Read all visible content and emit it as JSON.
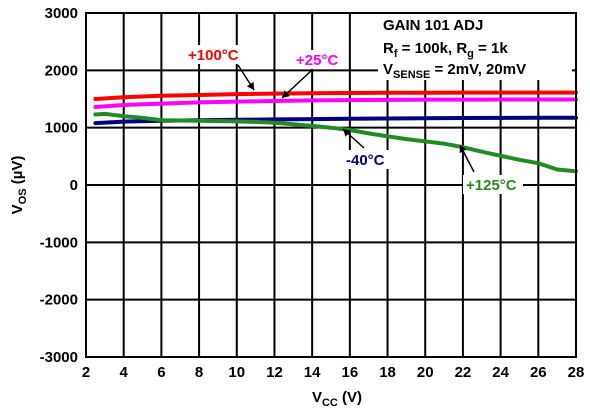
{
  "chart_data": {
    "type": "line",
    "xlabel": "VCC (V)",
    "xlabel_main": "V",
    "xlabel_sub": "CC",
    "xlabel_tail": " (V)",
    "ylabel": "VOS (µV)",
    "ylabel_main": "V",
    "ylabel_sub": "OS",
    "ylabel_tail": " (µV)",
    "xlim": [
      2,
      28
    ],
    "ylim": [
      -3000,
      3000
    ],
    "xticks": [
      2,
      4,
      6,
      8,
      10,
      12,
      14,
      16,
      18,
      20,
      22,
      24,
      26,
      28
    ],
    "yticks": [
      -3000,
      -2000,
      -1000,
      0,
      1000,
      2000,
      3000
    ],
    "grid": true,
    "conditions": {
      "line1": "GAIN 101 ADJ",
      "line2": {
        "r1": "R",
        "r1_sub": "f",
        "r1_val": " = 100k, R",
        "r2_sub": "g",
        "r2_val": " = 1k"
      },
      "line3": {
        "v": "V",
        "v_sub": "SENSE",
        "v_val": " = 2mV, 20mV"
      }
    },
    "series": [
      {
        "name": "+100°C",
        "color": "#ff0000",
        "label_pos": "upper-left",
        "x": [
          2.5,
          4,
          6,
          8,
          10,
          12,
          14,
          16,
          18,
          20,
          22,
          24,
          26,
          28
        ],
        "y": [
          1500,
          1530,
          1555,
          1570,
          1585,
          1595,
          1600,
          1605,
          1610,
          1610,
          1612,
          1612,
          1612,
          1612
        ]
      },
      {
        "name": "+25°C",
        "color": "#ff00ff",
        "label_pos": "upper-middle",
        "x": [
          2.5,
          4,
          6,
          8,
          10,
          12,
          14,
          16,
          18,
          20,
          22,
          24,
          26,
          28
        ],
        "y": [
          1360,
          1395,
          1420,
          1440,
          1455,
          1465,
          1475,
          1480,
          1485,
          1490,
          1490,
          1492,
          1492,
          1492
        ]
      },
      {
        "name": "-40°C",
        "color": "#000080",
        "label_pos": "middle",
        "x": [
          2.5,
          4,
          6,
          8,
          10,
          12,
          14,
          16,
          18,
          20,
          22,
          24,
          26,
          28
        ],
        "y": [
          1080,
          1105,
          1120,
          1130,
          1138,
          1145,
          1150,
          1155,
          1160,
          1165,
          1168,
          1170,
          1172,
          1172
        ]
      },
      {
        "name": "+125°C",
        "color": "#228b22",
        "label_pos": "lower-right",
        "x": [
          2.5,
          3,
          4,
          5,
          6,
          8,
          10,
          11,
          12,
          13,
          14,
          15,
          16,
          17,
          18,
          19,
          20,
          21,
          22,
          23,
          24,
          25,
          26,
          27,
          28
        ],
        "y": [
          1230,
          1240,
          1200,
          1170,
          1130,
          1120,
          1110,
          1100,
          1085,
          1060,
          1030,
          1000,
          960,
          900,
          850,
          800,
          760,
          720,
          660,
          580,
          510,
          440,
          380,
          270,
          240
        ]
      }
    ]
  }
}
